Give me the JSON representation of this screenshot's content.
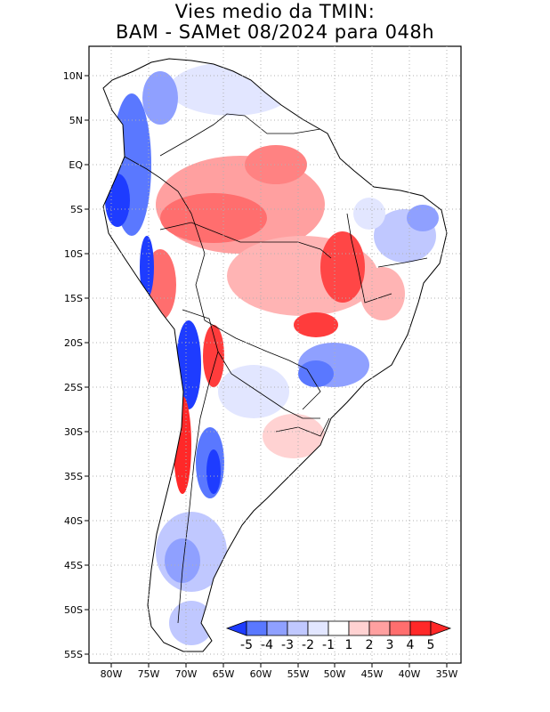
{
  "title": {
    "line1": "Vies medio da TMIN:",
    "line2": "BAM - SAMet 08/2024  para 048h"
  },
  "map": {
    "lat_labels": [
      "10N",
      "5N",
      "EQ",
      "5S",
      "10S",
      "15S",
      "20S",
      "25S",
      "30S",
      "35S",
      "40S",
      "45S",
      "50S",
      "55S"
    ],
    "lon_labels": [
      "80W",
      "75W",
      "70W",
      "65W",
      "60W",
      "55W",
      "50W",
      "45W",
      "40W",
      "35W"
    ]
  },
  "colorbar": {
    "labels": [
      "-5",
      "-4",
      "-3",
      "-2",
      "-1",
      "1",
      "2",
      "3",
      "4",
      "5"
    ],
    "colors": [
      "#1e3cff",
      "#5a78ff",
      "#8fa0ff",
      "#c0c8ff",
      "#e2e6ff",
      "#ffffff",
      "#ffd2d2",
      "#ffa0a0",
      "#ff6e6e",
      "#ff2828"
    ]
  },
  "colors": {
    "land_neutral": "#ffffff",
    "warm_strong": "#ff2828",
    "warm_mid": "#ff8282",
    "warm_light": "#ffd2d2",
    "cool_light": "#dde3ff",
    "cool_mid": "#8fa0ff",
    "cool_strong": "#1e3cff",
    "grid": "#b0b0b0",
    "border": "#000000"
  }
}
